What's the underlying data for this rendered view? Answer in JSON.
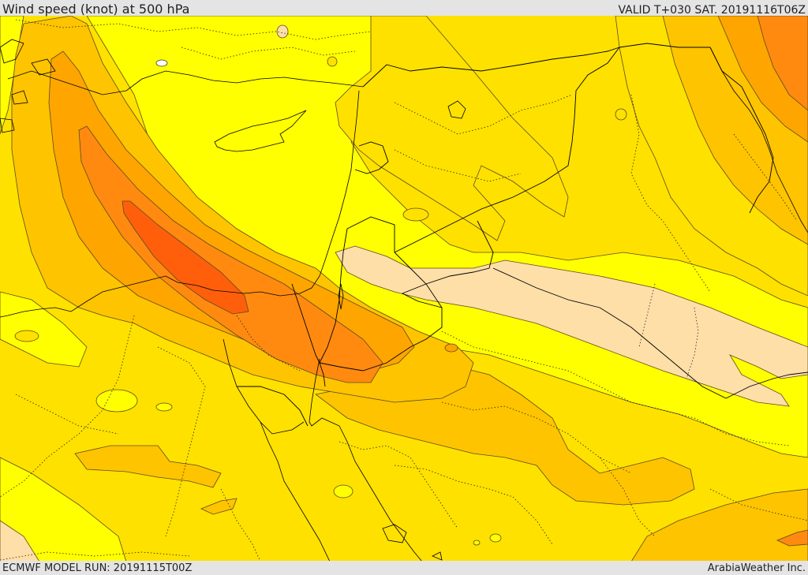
{
  "header": {
    "title": "Wind speed (knot) at 500 hPa",
    "valid": "VALID T+030 SAT. 20191116T06Z"
  },
  "footer": {
    "model_run": "ECMWF MODEL RUN: 20191115T00Z",
    "credit": "ArabiaWeather Inc."
  },
  "map": {
    "field": "wind speed",
    "level": "500 hPa",
    "units": "knot",
    "fill_colors": {
      "light": "#ffdfa8",
      "yellow": "#ffff00",
      "gold": "#ffe100",
      "amber": "#ffc400",
      "orange": "#ffa500",
      "dark-orange": "#ff8a0f",
      "red-orange": "#ff5f0a"
    },
    "line_colors": {
      "contour": "#5c4a20",
      "border": "#000000",
      "coast": "#000000"
    }
  }
}
